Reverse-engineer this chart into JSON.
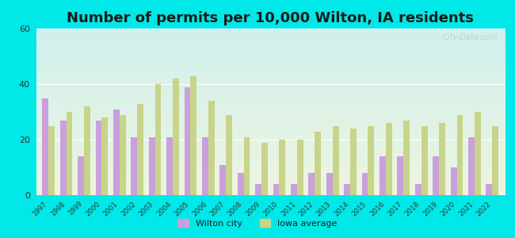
{
  "title": "Number of permits per 10,000 Wilton, IA residents",
  "years": [
    1997,
    1998,
    1999,
    2000,
    2001,
    2002,
    2003,
    2004,
    2005,
    2006,
    2007,
    2008,
    2009,
    2010,
    2011,
    2012,
    2013,
    2014,
    2015,
    2016,
    2017,
    2018,
    2019,
    2020,
    2021,
    2022
  ],
  "wilton": [
    35,
    27,
    14,
    27,
    31,
    21,
    21,
    21,
    39,
    21,
    11,
    8,
    4,
    4,
    4,
    8,
    8,
    4,
    8,
    14,
    14,
    4,
    14,
    10,
    21,
    4
  ],
  "iowa": [
    25,
    30,
    32,
    28,
    29,
    33,
    40,
    42,
    43,
    34,
    29,
    21,
    19,
    20,
    20,
    23,
    25,
    24,
    25,
    26,
    27,
    25,
    26,
    29,
    30,
    25
  ],
  "wilton_color": "#c9a0dc",
  "iowa_color": "#c8d48a",
  "ylim": [
    0,
    60
  ],
  "yticks": [
    0,
    20,
    40,
    60
  ],
  "background_outer": "#00e8e8",
  "bg_top_color": "#d0f0ee",
  "bg_bottom_color": "#eef5e0",
  "bar_width": 0.35,
  "title_fontsize": 13,
  "watermark": "City-Data.com",
  "legend_wilton": "Wilton city",
  "legend_iowa": "Iowa average"
}
